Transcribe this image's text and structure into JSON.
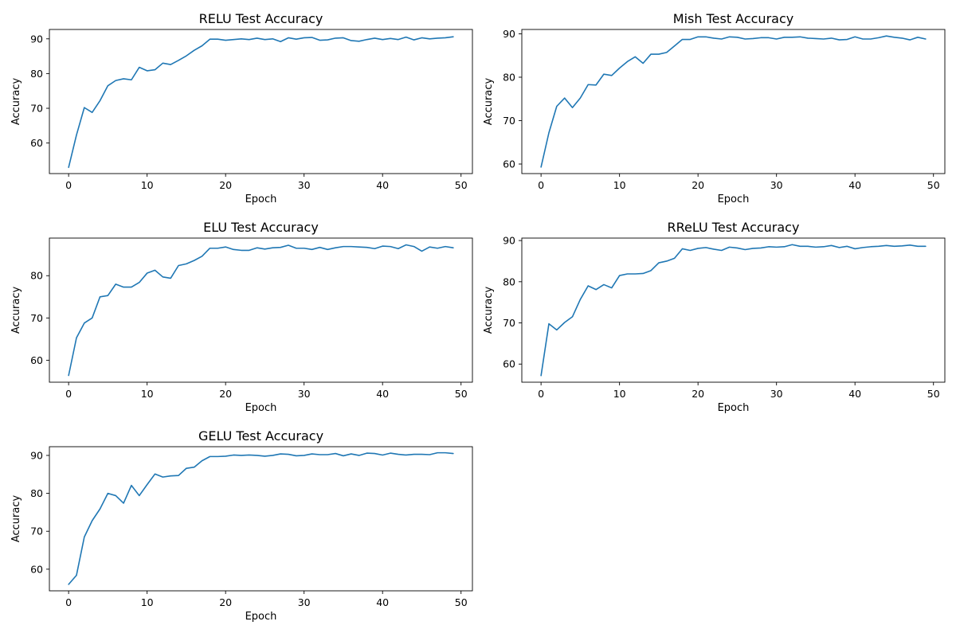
{
  "chart_data": [
    {
      "type": "line",
      "title": "RELU Test Accuracy",
      "xlabel": "Epoch",
      "ylabel": "Accuracy",
      "xlim": [
        -2.45,
        51.45
      ],
      "ylim": [
        51.2,
        92.7
      ],
      "xticks": [
        0,
        10,
        20,
        30,
        40,
        50
      ],
      "yticks": [
        60,
        70,
        80,
        90
      ],
      "color": "#1f77b4",
      "x": [
        0,
        1,
        2,
        3,
        4,
        5,
        6,
        7,
        8,
        9,
        10,
        11,
        12,
        13,
        14,
        15,
        16,
        17,
        18,
        19,
        20,
        21,
        22,
        23,
        24,
        25,
        26,
        27,
        28,
        29,
        30,
        31,
        32,
        33,
        34,
        35,
        36,
        37,
        38,
        39,
        40,
        41,
        42,
        43,
        44,
        45,
        46,
        47,
        48,
        49
      ],
      "values": [
        53.0,
        62.3,
        70.2,
        68.8,
        72.2,
        76.5,
        78.0,
        78.5,
        78.2,
        81.8,
        80.8,
        81.1,
        83.0,
        82.6,
        83.8,
        85.1,
        86.7,
        88.0,
        89.9,
        89.9,
        89.6,
        89.8,
        90.0,
        89.8,
        90.2,
        89.8,
        90.0,
        89.2,
        90.3,
        89.9,
        90.3,
        90.4,
        89.6,
        89.7,
        90.2,
        90.3,
        89.5,
        89.3,
        89.8,
        90.2,
        89.8,
        90.1,
        89.8,
        90.5,
        89.7,
        90.3,
        90.0,
        90.2,
        90.3,
        90.6
      ]
    },
    {
      "type": "line",
      "title": "Mish Test Accuracy",
      "xlabel": "Epoch",
      "ylabel": "Accuracy",
      "xlim": [
        -2.45,
        51.45
      ],
      "ylim": [
        57.8,
        91.0
      ],
      "xticks": [
        0,
        10,
        20,
        30,
        40,
        50
      ],
      "yticks": [
        60,
        70,
        80,
        90
      ],
      "color": "#1f77b4",
      "x": [
        0,
        1,
        2,
        3,
        4,
        5,
        6,
        7,
        8,
        9,
        10,
        11,
        12,
        13,
        14,
        15,
        16,
        17,
        18,
        19,
        20,
        21,
        22,
        23,
        24,
        25,
        26,
        27,
        28,
        29,
        30,
        31,
        32,
        33,
        34,
        35,
        36,
        37,
        38,
        39,
        40,
        41,
        42,
        43,
        44,
        45,
        46,
        47,
        48,
        49
      ],
      "values": [
        59.3,
        67.2,
        73.3,
        75.2,
        73.0,
        75.2,
        78.3,
        78.2,
        80.7,
        80.4,
        82.1,
        83.6,
        84.7,
        83.2,
        85.3,
        85.3,
        85.7,
        87.2,
        88.7,
        88.7,
        89.3,
        89.3,
        89.0,
        88.8,
        89.3,
        89.2,
        88.8,
        88.9,
        89.1,
        89.1,
        88.8,
        89.2,
        89.2,
        89.3,
        89.0,
        88.9,
        88.8,
        89.0,
        88.6,
        88.7,
        89.3,
        88.8,
        88.8,
        89.1,
        89.5,
        89.2,
        89.0,
        88.6,
        89.2,
        88.8
      ]
    },
    {
      "type": "line",
      "title": "ELU Test Accuracy",
      "xlabel": "Epoch",
      "ylabel": "Accuracy",
      "xlim": [
        -2.45,
        51.45
      ],
      "ylim": [
        54.8,
        88.9
      ],
      "xticks": [
        0,
        10,
        20,
        30,
        40,
        50
      ],
      "yticks": [
        60,
        70,
        80
      ],
      "color": "#1f77b4",
      "x": [
        0,
        1,
        2,
        3,
        4,
        5,
        6,
        7,
        8,
        9,
        10,
        11,
        12,
        13,
        14,
        15,
        16,
        17,
        18,
        19,
        20,
        21,
        22,
        23,
        24,
        25,
        26,
        27,
        28,
        29,
        30,
        31,
        32,
        33,
        34,
        35,
        36,
        37,
        38,
        39,
        40,
        41,
        42,
        43,
        44,
        45,
        46,
        47,
        48,
        49
      ],
      "values": [
        56.4,
        65.3,
        68.8,
        70.0,
        75.0,
        75.3,
        78.0,
        77.3,
        77.3,
        78.4,
        80.6,
        81.3,
        79.7,
        79.4,
        82.4,
        82.8,
        83.6,
        84.6,
        86.5,
        86.5,
        86.8,
        86.2,
        86.0,
        86.0,
        86.6,
        86.3,
        86.6,
        86.7,
        87.2,
        86.5,
        86.5,
        86.2,
        86.7,
        86.2,
        86.6,
        86.9,
        86.9,
        86.8,
        86.7,
        86.4,
        87.0,
        86.9,
        86.4,
        87.3,
        86.9,
        85.8,
        86.8,
        86.5,
        86.9,
        86.6
      ]
    },
    {
      "type": "line",
      "title": "RReLU Test Accuracy",
      "xlabel": "Epoch",
      "ylabel": "Accuracy",
      "xlim": [
        -2.45,
        51.45
      ],
      "ylim": [
        55.6,
        90.6
      ],
      "xticks": [
        0,
        10,
        20,
        30,
        40,
        50
      ],
      "yticks": [
        60,
        70,
        80,
        90
      ],
      "color": "#1f77b4",
      "x": [
        0,
        1,
        2,
        3,
        4,
        5,
        6,
        7,
        8,
        9,
        10,
        11,
        12,
        13,
        14,
        15,
        16,
        17,
        18,
        19,
        20,
        21,
        22,
        23,
        24,
        25,
        26,
        27,
        28,
        29,
        30,
        31,
        32,
        33,
        34,
        35,
        36,
        37,
        38,
        39,
        40,
        41,
        42,
        43,
        44,
        45,
        46,
        47,
        48,
        49
      ],
      "values": [
        57.2,
        69.8,
        68.3,
        70.1,
        71.5,
        75.7,
        79.0,
        78.1,
        79.3,
        78.5,
        81.5,
        81.9,
        81.9,
        82.0,
        82.7,
        84.6,
        85.0,
        85.7,
        88.0,
        87.6,
        88.1,
        88.3,
        87.9,
        87.6,
        88.4,
        88.2,
        87.8,
        88.1,
        88.2,
        88.5,
        88.4,
        88.5,
        89.0,
        88.6,
        88.6,
        88.4,
        88.5,
        88.8,
        88.3,
        88.6,
        88.0,
        88.3,
        88.5,
        88.6,
        88.8,
        88.6,
        88.7,
        88.9,
        88.6,
        88.6
      ]
    },
    {
      "type": "line",
      "title": "GELU Test Accuracy",
      "xlabel": "Epoch",
      "ylabel": "Accuracy",
      "xlim": [
        -2.45,
        51.45
      ],
      "ylim": [
        54.3,
        92.3
      ],
      "xticks": [
        0,
        10,
        20,
        30,
        40,
        50
      ],
      "yticks": [
        60,
        70,
        80,
        90
      ],
      "color": "#1f77b4",
      "x": [
        0,
        1,
        2,
        3,
        4,
        5,
        6,
        7,
        8,
        9,
        10,
        11,
        12,
        13,
        14,
        15,
        16,
        17,
        18,
        19,
        20,
        21,
        22,
        23,
        24,
        25,
        26,
        27,
        28,
        29,
        30,
        31,
        32,
        33,
        34,
        35,
        36,
        37,
        38,
        39,
        40,
        41,
        42,
        43,
        44,
        45,
        46,
        47,
        48,
        49
      ],
      "values": [
        56.0,
        58.4,
        68.5,
        72.8,
        75.9,
        80.0,
        79.4,
        77.4,
        82.1,
        79.4,
        82.3,
        85.1,
        84.3,
        84.6,
        84.7,
        86.6,
        86.9,
        88.6,
        89.7,
        89.7,
        89.8,
        90.1,
        90.0,
        90.1,
        90.0,
        89.8,
        90.0,
        90.4,
        90.3,
        89.9,
        90.0,
        90.4,
        90.2,
        90.2,
        90.5,
        89.9,
        90.4,
        90.0,
        90.6,
        90.5,
        90.1,
        90.6,
        90.3,
        90.1,
        90.3,
        90.3,
        90.2,
        90.7,
        90.7,
        90.5
      ]
    }
  ]
}
